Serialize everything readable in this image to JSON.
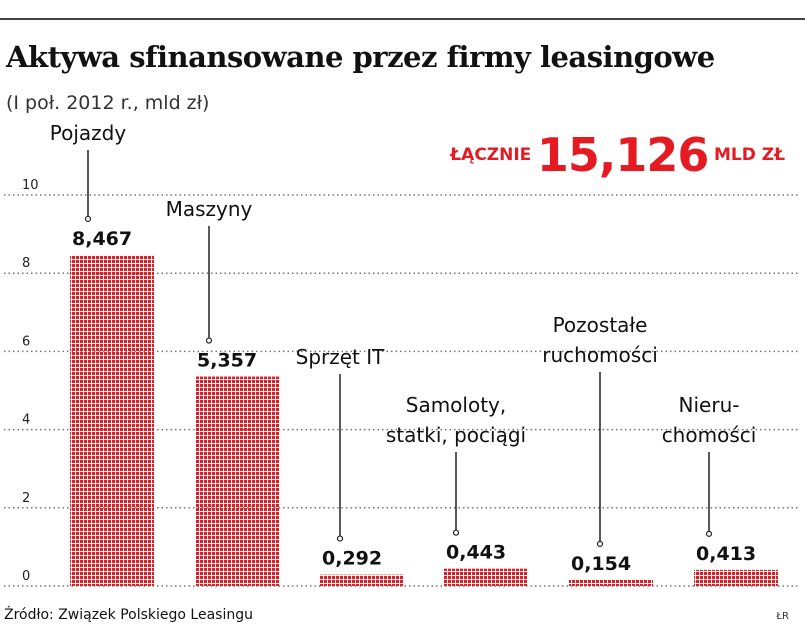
{
  "header": {
    "title": "Aktywa sfinansowane przez firmy leasingowe",
    "subtitle": "(I poł. 2012 r., mld zł)"
  },
  "total": {
    "label": "ŁĄCZNIE",
    "value": "15,126",
    "unit": "MLD ZŁ"
  },
  "colors": {
    "bar": "#e41b23",
    "grid": "#777777",
    "total": "#e41b23"
  },
  "chart_data": {
    "type": "bar",
    "categories": [
      [
        "Pojazdy"
      ],
      [
        "Maszyny"
      ],
      [
        "Sprzęt IT"
      ],
      [
        "Samoloty,",
        "statki, pociągi"
      ],
      [
        "Pozostałe",
        "ruchomości"
      ],
      [
        "Nieru-",
        "chomości"
      ]
    ],
    "values": [
      8.467,
      5.357,
      0.292,
      0.443,
      0.154,
      0.413
    ],
    "value_labels": [
      "8,467",
      "5,357",
      "0,292",
      "0,443",
      "0,154",
      "0,413"
    ],
    "yticks": [
      "0",
      "2",
      "4",
      "6",
      "8",
      "10"
    ],
    "ylim": [
      0,
      10
    ],
    "grid": true,
    "bar_pattern": "dotted grid"
  },
  "footer": {
    "source": "Źródło: Związek Polskiego Leasingu",
    "initials": "ŁR"
  }
}
